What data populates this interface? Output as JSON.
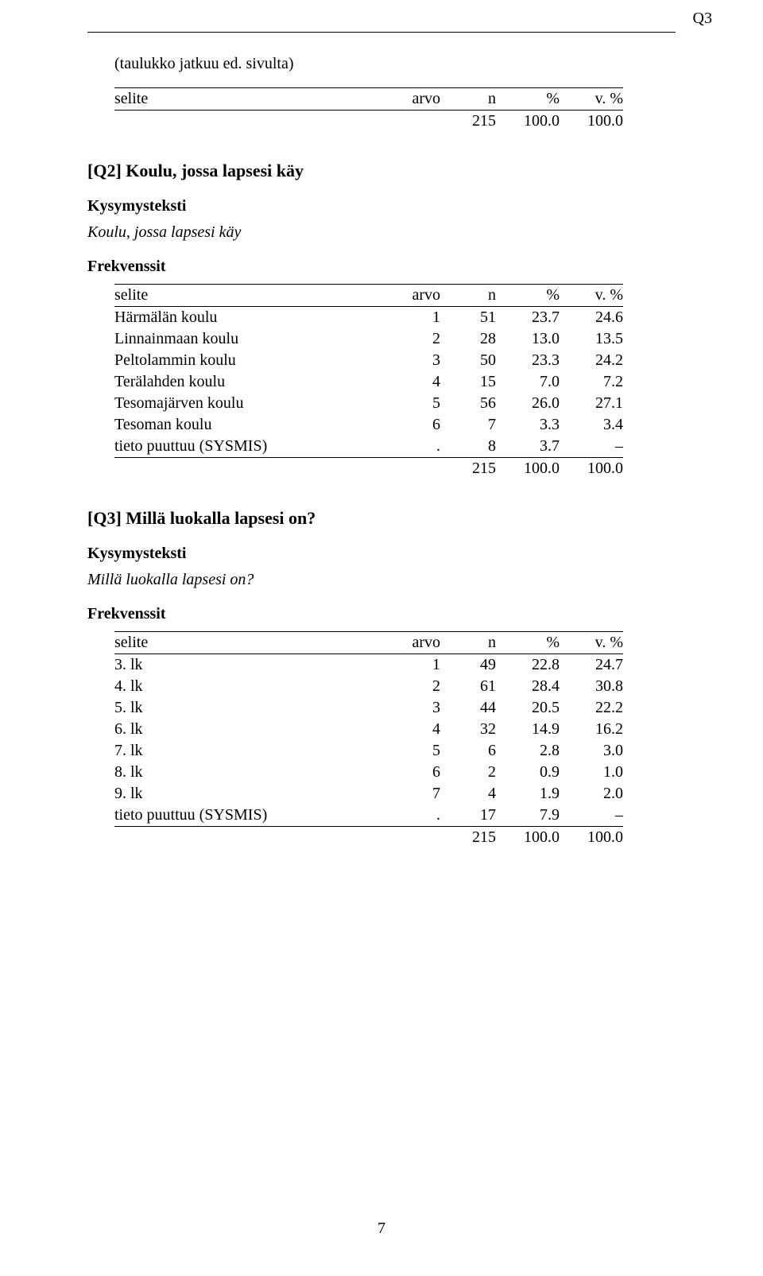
{
  "page": {
    "corner_label": "Q3",
    "number": "7"
  },
  "cont": {
    "note": "(taulukko jatkuu ed. sivulta)",
    "header": {
      "c1": "selite",
      "c2": "arvo",
      "c3": "n",
      "c4": "%",
      "c5": "v. %"
    },
    "total": {
      "n": "215",
      "pct": "100.0",
      "vpct": "100.0"
    }
  },
  "q2": {
    "heading": "[Q2] Koulu, jossa lapsesi käy",
    "kys_label": "Kysymysteksti",
    "kys_text": "Koulu, jossa lapsesi käy",
    "freq_label": "Frekvenssit",
    "header": {
      "c1": "selite",
      "c2": "arvo",
      "c3": "n",
      "c4": "%",
      "c5": "v. %"
    },
    "rows": [
      {
        "label": "Härmälän koulu",
        "arvo": "1",
        "n": "51",
        "pct": "23.7",
        "vpct": "24.6"
      },
      {
        "label": "Linnainmaan koulu",
        "arvo": "2",
        "n": "28",
        "pct": "13.0",
        "vpct": "13.5"
      },
      {
        "label": "Peltolammin koulu",
        "arvo": "3",
        "n": "50",
        "pct": "23.3",
        "vpct": "24.2"
      },
      {
        "label": "Terälahden koulu",
        "arvo": "4",
        "n": "15",
        "pct": "7.0",
        "vpct": "7.2"
      },
      {
        "label": "Tesomajärven koulu",
        "arvo": "5",
        "n": "56",
        "pct": "26.0",
        "vpct": "27.1"
      },
      {
        "label": "Tesoman koulu",
        "arvo": "6",
        "n": "7",
        "pct": "3.3",
        "vpct": "3.4"
      },
      {
        "label": "tieto puuttuu (SYSMIS)",
        "arvo": ".",
        "n": "8",
        "pct": "3.7",
        "vpct": "–"
      }
    ],
    "total": {
      "n": "215",
      "pct": "100.0",
      "vpct": "100.0"
    }
  },
  "q3": {
    "heading": "[Q3] Millä luokalla lapsesi on?",
    "kys_label": "Kysymysteksti",
    "kys_text": "Millä luokalla lapsesi on?",
    "freq_label": "Frekvenssit",
    "header": {
      "c1": "selite",
      "c2": "arvo",
      "c3": "n",
      "c4": "%",
      "c5": "v. %"
    },
    "rows": [
      {
        "label": "3. lk",
        "arvo": "1",
        "n": "49",
        "pct": "22.8",
        "vpct": "24.7"
      },
      {
        "label": "4. lk",
        "arvo": "2",
        "n": "61",
        "pct": "28.4",
        "vpct": "30.8"
      },
      {
        "label": "5. lk",
        "arvo": "3",
        "n": "44",
        "pct": "20.5",
        "vpct": "22.2"
      },
      {
        "label": "6. lk",
        "arvo": "4",
        "n": "32",
        "pct": "14.9",
        "vpct": "16.2"
      },
      {
        "label": "7. lk",
        "arvo": "5",
        "n": "6",
        "pct": "2.8",
        "vpct": "3.0"
      },
      {
        "label": "8. lk",
        "arvo": "6",
        "n": "2",
        "pct": "0.9",
        "vpct": "1.0"
      },
      {
        "label": "9. lk",
        "arvo": "7",
        "n": "4",
        "pct": "1.9",
        "vpct": "2.0"
      },
      {
        "label": "tieto puuttuu (SYSMIS)",
        "arvo": ".",
        "n": "17",
        "pct": "7.9",
        "vpct": "–"
      }
    ],
    "total": {
      "n": "215",
      "pct": "100.0",
      "vpct": "100.0"
    }
  }
}
